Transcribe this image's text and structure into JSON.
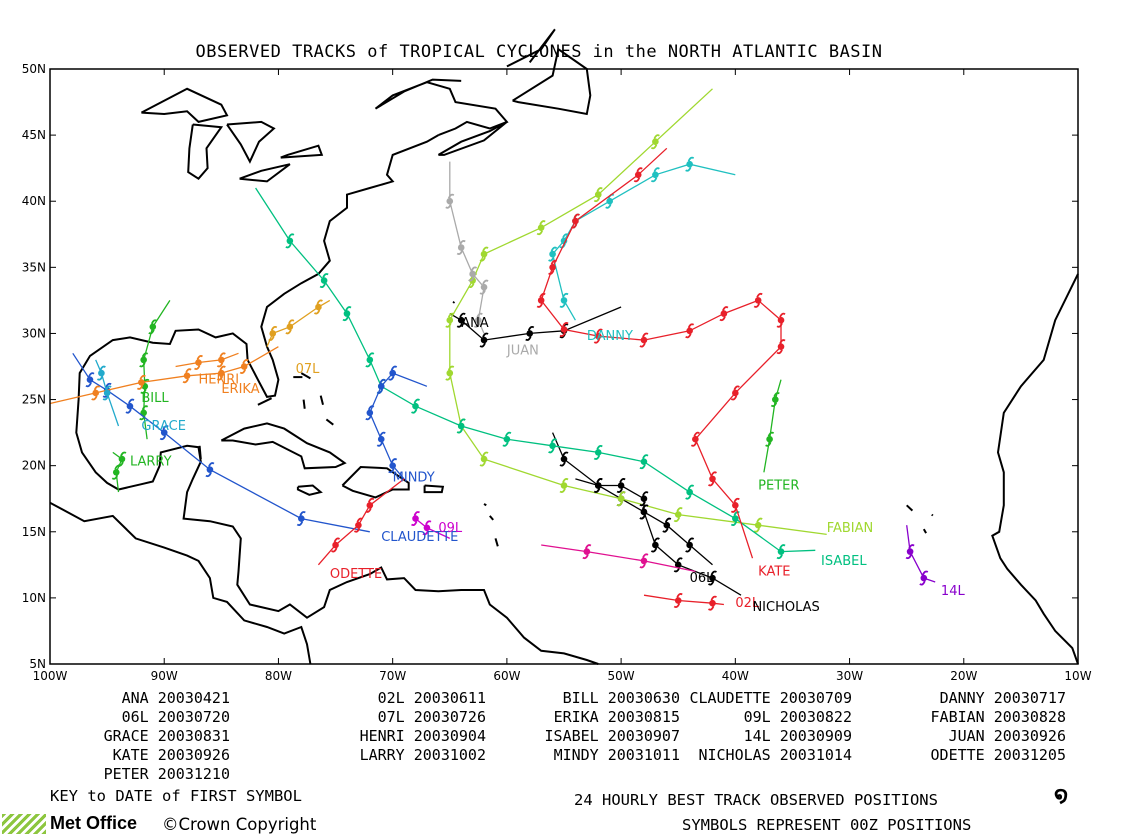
{
  "title": "OBSERVED TRACKS of TROPICAL CYCLONES in the NORTH ATLANTIC BASIN",
  "x_ticks": [
    "100W",
    "90W",
    "80W",
    "70W",
    "60W",
    "50W",
    "40W",
    "30W",
    "20W",
    "10W"
  ],
  "y_ticks": [
    "50N",
    "45N",
    "40N",
    "35N",
    "30N",
    "25N",
    "20N",
    "15N",
    "10N",
    "5N"
  ],
  "chart_data": {
    "type": "map-tracks",
    "lon_range": [
      -100,
      -10
    ],
    "lat_range": [
      5,
      50
    ],
    "storms": [
      {
        "name": "ANA",
        "date": "20030421",
        "color": "#000000",
        "label": "ANA",
        "label_pos": [
          -64,
          30.5
        ],
        "points": [
          [
            -65,
            31.5
          ],
          [
            -64,
            31
          ],
          [
            -62,
            29.5
          ],
          [
            -58,
            30
          ],
          [
            -55,
            30.2
          ],
          [
            -50,
            32
          ]
        ]
      },
      {
        "name": "02L",
        "date": "20030611",
        "color": "#e8202a",
        "label": "02L",
        "label_pos": [
          -40,
          9.3
        ],
        "points": [
          [
            -48,
            10.2
          ],
          [
            -45,
            9.8
          ],
          [
            -42,
            9.6
          ],
          [
            -41,
            9.5
          ]
        ]
      },
      {
        "name": "BILL",
        "date": "20030630",
        "color": "#22b522",
        "label": "BILL",
        "label_pos": [
          -92,
          24.8
        ],
        "points": [
          [
            -91.5,
            22
          ],
          [
            -91.8,
            24
          ],
          [
            -91.7,
            26
          ],
          [
            -91.8,
            28
          ],
          [
            -91,
            30.5
          ],
          [
            -89.5,
            32.5
          ]
        ]
      },
      {
        "name": "CLAUDETTE",
        "date": "20030709",
        "color": "#2255cc",
        "label": "CLAUDETTE",
        "label_pos": [
          -71,
          14.3
        ],
        "points": [
          [
            -72,
            15
          ],
          [
            -78,
            16
          ],
          [
            -86,
            19.7
          ],
          [
            -90,
            22.5
          ],
          [
            -93,
            24.5
          ],
          [
            -95,
            25.7
          ],
          [
            -96.5,
            26.5
          ],
          [
            -98,
            28.5
          ]
        ]
      },
      {
        "name": "DANNY",
        "date": "20030717",
        "color": "#20c0c0",
        "label": "DANNY",
        "label_pos": [
          -53,
          29.5
        ],
        "points": [
          [
            -54,
            31
          ],
          [
            -55,
            32.5
          ],
          [
            -56,
            36
          ],
          [
            -55,
            37
          ],
          [
            -54,
            38.5
          ],
          [
            -51,
            40
          ],
          [
            -47,
            42
          ],
          [
            -44,
            42.8
          ],
          [
            -40,
            42
          ]
        ]
      },
      {
        "name": "06L",
        "date": "20030720",
        "color": "#000000",
        "label": "06L",
        "label_pos": [
          -44,
          11.2
        ],
        "points": [
          [
            -56,
            22.5
          ],
          [
            -55,
            20.5
          ],
          [
            -52,
            18.5
          ],
          [
            -50,
            17.5
          ],
          [
            -48,
            16.5
          ],
          [
            -46,
            15.5
          ],
          [
            -44,
            14
          ],
          [
            -42,
            12.5
          ]
        ]
      },
      {
        "name": "07L",
        "date": "20030726",
        "color": "#e0a020",
        "label": "07L",
        "label_pos": [
          -78.5,
          27
        ],
        "points": [
          [
            -81,
            29
          ],
          [
            -80.5,
            30
          ],
          [
            -79,
            30.5
          ],
          [
            -76.5,
            32
          ],
          [
            -75.5,
            32.5
          ]
        ]
      },
      {
        "name": "ERIKA",
        "date": "20030815",
        "color": "#f08020",
        "label": "ERIKA",
        "label_pos": [
          -85,
          25.5
        ],
        "points": [
          [
            -100,
            24.7
          ],
          [
            -96,
            25.5
          ],
          [
            -92,
            26.3
          ],
          [
            -88,
            26.8
          ],
          [
            -85,
            27
          ],
          [
            -83,
            27.5
          ],
          [
            -80,
            29
          ]
        ]
      },
      {
        "name": "09L",
        "date": "20030822",
        "color": "#cc00cc",
        "label": "09L",
        "label_pos": [
          -66,
          15
        ],
        "points": [
          [
            -68,
            16
          ],
          [
            -67,
            15.3
          ],
          [
            -65,
            14.5
          ]
        ]
      },
      {
        "name": "FABIAN",
        "date": "20030828",
        "color": "#a0d830",
        "label": "FABIAN",
        "label_pos": [
          -32,
          15
        ],
        "points": [
          [
            -32,
            14.8
          ],
          [
            -38,
            15.5
          ],
          [
            -45,
            16.3
          ],
          [
            -50,
            17.5
          ],
          [
            -55,
            18.5
          ],
          [
            -62,
            20.5
          ],
          [
            -64,
            23
          ],
          [
            -65,
            27
          ],
          [
            -65,
            31
          ],
          [
            -63,
            34
          ],
          [
            -62,
            36
          ],
          [
            -57,
            38
          ],
          [
            -52,
            40.5
          ],
          [
            -47,
            44.5
          ],
          [
            -42,
            48.5
          ]
        ]
      },
      {
        "name": "GRACE",
        "date": "20030831",
        "color": "#22aacc",
        "label": "GRACE",
        "label_pos": [
          -92,
          22.7
        ],
        "points": [
          [
            -94,
            23
          ],
          [
            -95,
            25.5
          ],
          [
            -95.5,
            27
          ],
          [
            -96,
            28
          ]
        ]
      },
      {
        "name": "HENRI",
        "date": "20030904",
        "color": "#f08020",
        "label": "HENRI",
        "label_pos": [
          -87,
          26.2
        ],
        "points": [
          [
            -89,
            27.5
          ],
          [
            -87,
            27.8
          ],
          [
            -85,
            28
          ],
          [
            -83.5,
            28.5
          ]
        ]
      },
      {
        "name": "ISABEL",
        "date": "20030907",
        "color": "#00c080",
        "label": "ISABEL",
        "label_pos": [
          -32.5,
          12.5
        ],
        "points": [
          [
            -33,
            13.6
          ],
          [
            -36,
            13.5
          ],
          [
            -40,
            16
          ],
          [
            -44,
            18
          ],
          [
            -48,
            20.3
          ],
          [
            -52,
            21
          ],
          [
            -56,
            21.5
          ],
          [
            -60,
            22
          ],
          [
            -64,
            23
          ],
          [
            -68,
            24.5
          ],
          [
            -71,
            26
          ],
          [
            -72,
            28
          ],
          [
            -74,
            31.5
          ],
          [
            -76,
            34
          ],
          [
            -79,
            37
          ],
          [
            -82,
            41
          ]
        ]
      },
      {
        "name": "14L",
        "date": "20030909",
        "color": "#8800cc",
        "label": "14L",
        "label_pos": [
          -22,
          10.2
        ],
        "points": [
          [
            -25,
            15.5
          ],
          [
            -24.7,
            13.5
          ],
          [
            -23.5,
            11.5
          ],
          [
            -22.5,
            11.2
          ]
        ]
      },
      {
        "name": "HENRI2",
        "date": "",
        "color": "#f08020",
        "label": "",
        "label_pos": [
          0,
          0
        ],
        "points": []
      },
      {
        "name": "JUAN",
        "date": "20030926",
        "color": "#aaaaaa",
        "label": "JUAN",
        "label_pos": [
          -60,
          28.4
        ],
        "points": [
          [
            -62,
            30
          ],
          [
            -62.5,
            31
          ],
          [
            -62,
            33.5
          ],
          [
            -63,
            34.5
          ],
          [
            -64,
            36.5
          ],
          [
            -65,
            40
          ],
          [
            -65,
            43
          ]
        ]
      },
      {
        "name": "KATE",
        "date": "20030926",
        "color": "#e8202a",
        "label": "KATE",
        "label_pos": [
          -38,
          11.7
        ],
        "points": [
          [
            -38.5,
            13
          ],
          [
            -40,
            17
          ],
          [
            -42,
            19
          ],
          [
            -43.5,
            22
          ],
          [
            -40,
            25.5
          ],
          [
            -36,
            29
          ],
          [
            -36,
            31
          ],
          [
            -38,
            32.5
          ],
          [
            -41,
            31.5
          ],
          [
            -44,
            30.2
          ],
          [
            -48,
            29.5
          ],
          [
            -52,
            29.8
          ],
          [
            -55,
            30.3
          ],
          [
            -57,
            32.5
          ],
          [
            -56,
            35
          ],
          [
            -54,
            38.5
          ],
          [
            -48.5,
            42
          ],
          [
            -46,
            44
          ]
        ]
      },
      {
        "name": "LARRY",
        "date": "20031002",
        "color": "#22b522",
        "label": "LARRY",
        "label_pos": [
          -93,
          20
        ],
        "points": [
          [
            -94,
            18
          ],
          [
            -94.2,
            19.5
          ],
          [
            -93.7,
            20.5
          ],
          [
            -94.5,
            21
          ]
        ]
      },
      {
        "name": "MINDY",
        "date": "20031011",
        "color": "#2255cc",
        "label": "MINDY",
        "label_pos": [
          -70,
          18.8
        ],
        "points": [
          [
            -69,
            19
          ],
          [
            -70,
            20
          ],
          [
            -71,
            22
          ],
          [
            -72,
            24
          ],
          [
            -71,
            26
          ],
          [
            -70,
            27
          ],
          [
            -67,
            26
          ]
        ]
      },
      {
        "name": "NICHOLAS",
        "date": "20031014",
        "color": "#000000",
        "label": "NICHOLAS",
        "label_pos": [
          -38.5,
          9
        ],
        "points": [
          [
            -39.5,
            10.2
          ],
          [
            -42,
            11.5
          ],
          [
            -45,
            12.5
          ],
          [
            -47,
            14
          ],
          [
            -48,
            16.5
          ],
          [
            -48,
            17.5
          ],
          [
            -50,
            18.5
          ],
          [
            -52,
            18.5
          ],
          [
            -54,
            19
          ]
        ]
      },
      {
        "name": "ODETTE",
        "date": "20031205",
        "color": "#e8202a",
        "label": "ODETTE",
        "label_pos": [
          -75.5,
          11.5
        ],
        "points": [
          [
            -76.5,
            12.5
          ],
          [
            -75,
            14
          ],
          [
            -73,
            15.5
          ],
          [
            -72,
            17
          ],
          [
            -69,
            19
          ]
        ]
      },
      {
        "name": "PETER",
        "date": "20031210",
        "color": "#22b522",
        "label": "PETER",
        "label_pos": [
          -38,
          18.2
        ],
        "points": [
          [
            -37.5,
            19.5
          ],
          [
            -37,
            22
          ],
          [
            -36.5,
            25
          ],
          [
            -36,
            26.5
          ]
        ]
      },
      {
        "name": "MAGENTA",
        "date": "",
        "color": "#e01090",
        "label": "",
        "label_pos": [
          0,
          0
        ],
        "points": [
          [
            -57,
            14
          ],
          [
            -53,
            13.5
          ],
          [
            -48,
            12.8
          ],
          [
            -43.5,
            12
          ]
        ]
      }
    ]
  },
  "legend": {
    "columns": [
      [
        {
          "name": "ANA",
          "date": "20030421"
        },
        {
          "name": "06L",
          "date": "20030720"
        },
        {
          "name": "GRACE",
          "date": "20030831"
        },
        {
          "name": "KATE",
          "date": "20030926"
        },
        {
          "name": "PETER",
          "date": "20031210"
        }
      ],
      [
        {
          "name": "02L",
          "date": "20030611"
        },
        {
          "name": "07L",
          "date": "20030726"
        },
        {
          "name": "HENRI",
          "date": "20030904"
        },
        {
          "name": "LARRY",
          "date": "20031002"
        }
      ],
      [
        {
          "name": "BILL",
          "date": "20030630"
        },
        {
          "name": "ERIKA",
          "date": "20030815"
        },
        {
          "name": "ISABEL",
          "date": "20030907"
        },
        {
          "name": "MINDY",
          "date": "20031011"
        }
      ],
      [
        {
          "name": "CLAUDETTE",
          "date": "20030709"
        },
        {
          "name": "09L",
          "date": "20030822"
        },
        {
          "name": "14L",
          "date": "20030909"
        },
        {
          "name": "NICHOLAS",
          "date": "20031014"
        }
      ],
      [
        {
          "name": "DANNY",
          "date": "20030717"
        },
        {
          "name": "FABIAN",
          "date": "20030828"
        },
        {
          "name": "JUAN",
          "date": "20030926"
        },
        {
          "name": "ODETTE",
          "date": "20031205"
        }
      ]
    ]
  },
  "footer": {
    "key_text": "KEY to DATE of FIRST SYMBOL",
    "positions_text": "24 HOURLY BEST TRACK OBSERVED POSITIONS",
    "symbols_text": "SYMBOLS REPRESENT 00Z POSITIONS",
    "logo_text": "Met Office",
    "copyright_text": "©Crown Copyright",
    "symbol_glyph": "໑"
  }
}
